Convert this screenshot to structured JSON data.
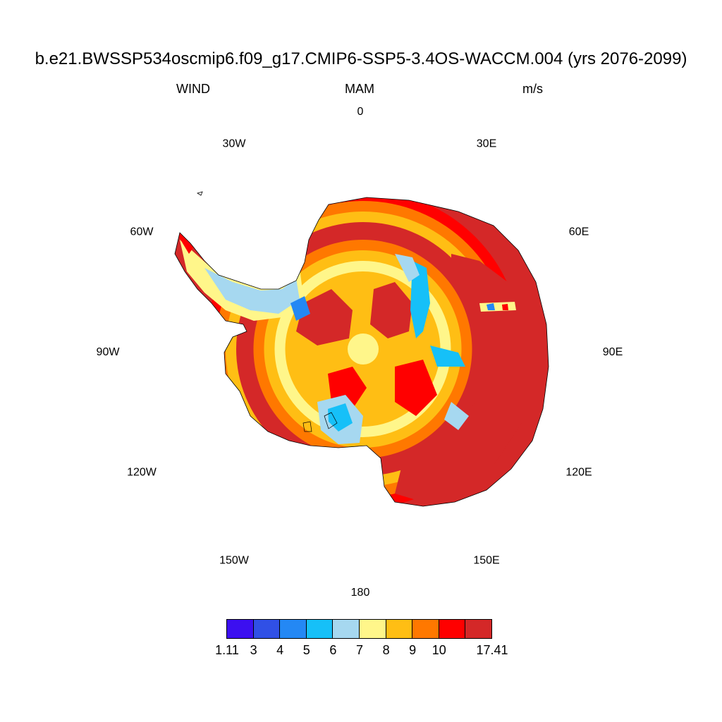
{
  "header": {
    "title": "b.e21.BWSSP534oscmip6.f09_g17.CMIP6-SSP5-3.4OS-WACCM.004 (yrs 2076-2099)",
    "left": "WIND",
    "center": "MAM",
    "right": "m/s"
  },
  "map": {
    "projection": "south-polar-stereographic",
    "variable": "WIND",
    "units": "m/s",
    "longitude_labels": [
      "0",
      "30E",
      "60E",
      "90E",
      "120E",
      "150E",
      "180",
      "150W",
      "120W",
      "90W",
      "60W",
      "30W"
    ]
  },
  "colorbar": {
    "labels": [
      "1.11",
      "3",
      "4",
      "5",
      "6",
      "7",
      "8",
      "9",
      "10",
      "17.41"
    ],
    "colors": [
      "#3c0ff0",
      "#3050e6",
      "#2488f4",
      "#16c0f8",
      "#a6d8f0",
      "#fff68a",
      "#ffbe14",
      "#ff7800",
      "#ff0000",
      "#d42828"
    ]
  }
}
